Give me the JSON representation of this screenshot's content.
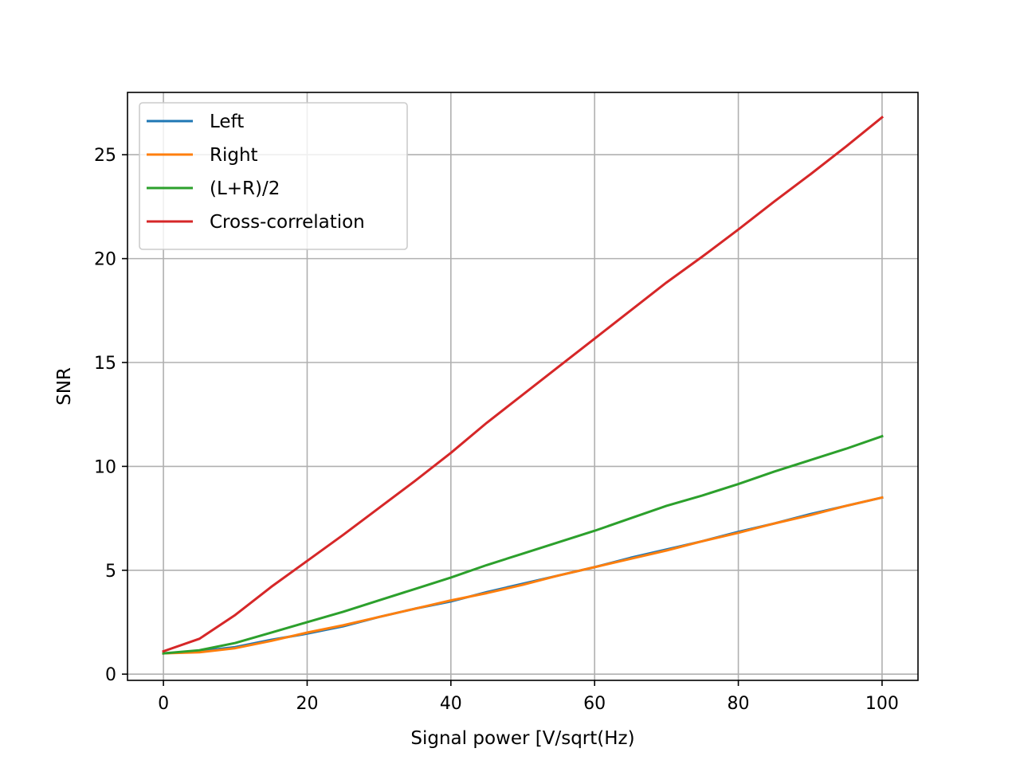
{
  "chart_data": {
    "type": "line",
    "xlabel": "Signal power [V/sqrt(Hz)",
    "ylabel": "SNR",
    "xlim": [
      -5,
      105
    ],
    "ylim": [
      -0.3,
      28
    ],
    "xticks": [
      0,
      20,
      40,
      60,
      80,
      100
    ],
    "yticks": [
      0,
      5,
      10,
      15,
      20,
      25
    ],
    "grid": true,
    "legend_position": "top-left",
    "x": [
      0,
      5,
      10,
      15,
      20,
      25,
      30,
      35,
      40,
      45,
      50,
      55,
      60,
      65,
      70,
      75,
      80,
      85,
      90,
      95,
      100
    ],
    "series": [
      {
        "name": "Left",
        "color": "#1f77b4",
        "values": [
          1.0,
          1.1,
          1.3,
          1.65,
          1.95,
          2.3,
          2.75,
          3.15,
          3.5,
          3.95,
          4.35,
          4.75,
          5.15,
          5.6,
          6.0,
          6.4,
          6.85,
          7.25,
          7.7,
          8.1,
          8.5
        ]
      },
      {
        "name": "Right",
        "color": "#ff7f0e",
        "values": [
          1.0,
          1.05,
          1.25,
          1.6,
          2.0,
          2.35,
          2.75,
          3.15,
          3.55,
          3.9,
          4.3,
          4.75,
          5.15,
          5.55,
          5.95,
          6.4,
          6.8,
          7.25,
          7.65,
          8.1,
          8.5
        ]
      },
      {
        "name": "(L+R)/2",
        "color": "#2ca02c",
        "values": [
          1.0,
          1.15,
          1.5,
          2.0,
          2.5,
          3.0,
          3.55,
          4.1,
          4.65,
          5.25,
          5.8,
          6.35,
          6.9,
          7.5,
          8.1,
          8.6,
          9.15,
          9.75,
          10.3,
          10.85,
          11.45
        ]
      },
      {
        "name": "Cross-correlation",
        "color": "#d62728",
        "values": [
          1.1,
          1.7,
          2.85,
          4.2,
          5.45,
          6.7,
          8.0,
          9.3,
          10.65,
          12.1,
          13.45,
          14.8,
          16.15,
          17.5,
          18.85,
          20.1,
          21.4,
          22.75,
          24.05,
          25.4,
          26.8
        ]
      }
    ]
  }
}
